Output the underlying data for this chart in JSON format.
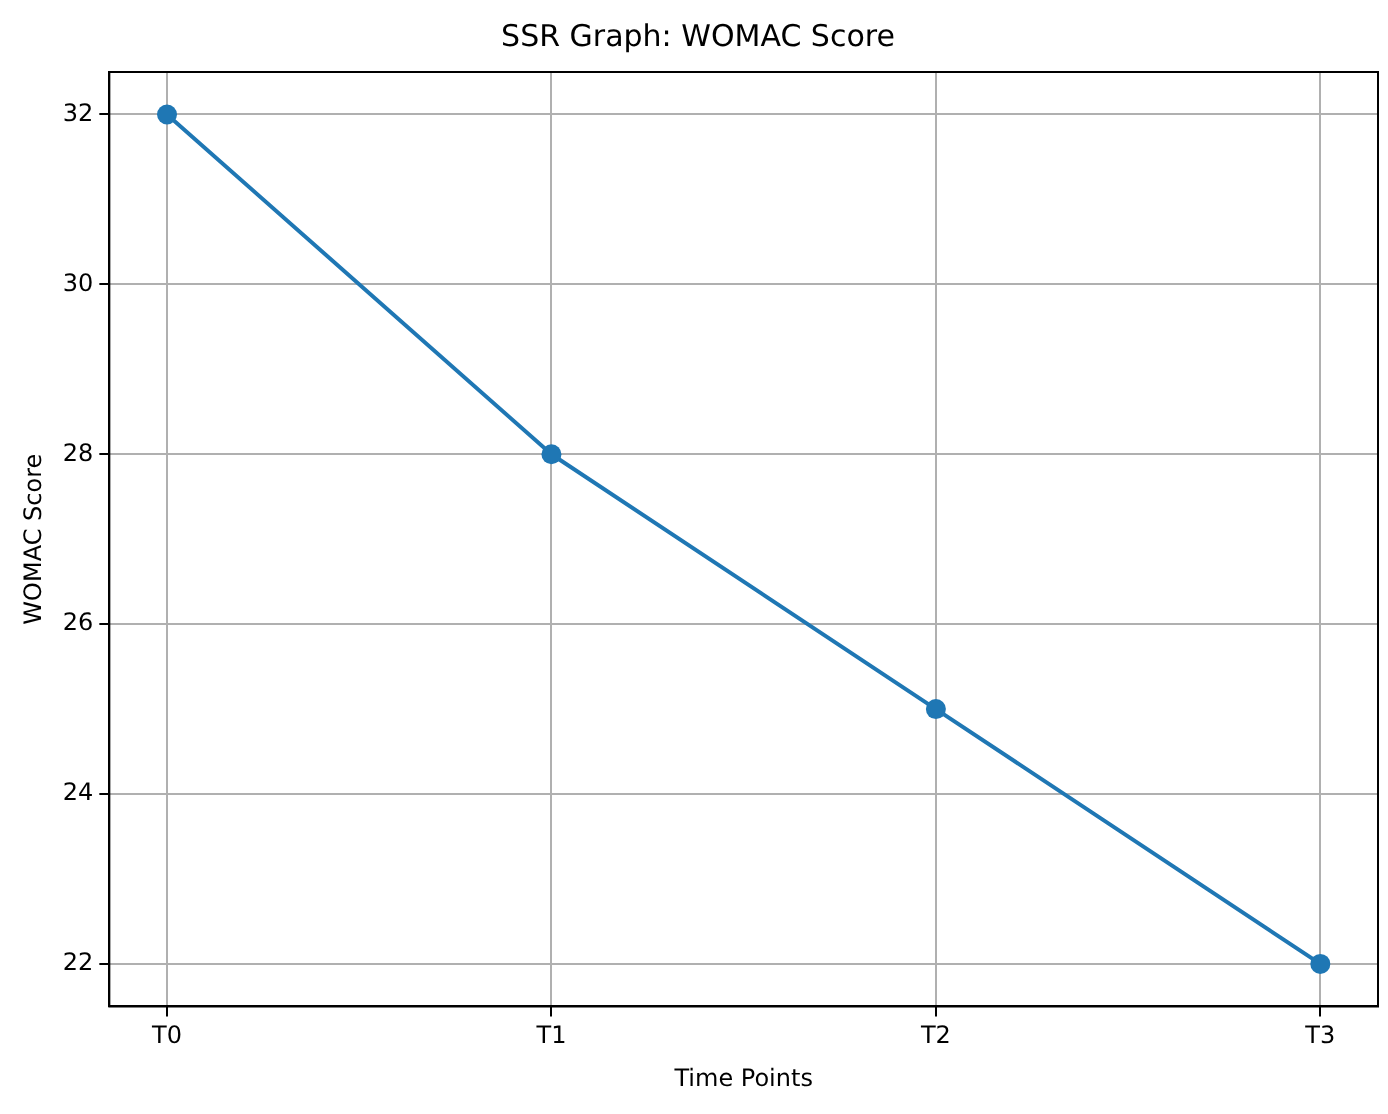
{
  "chart_data": {
    "type": "line",
    "title": "SSR Graph: WOMAC Score",
    "xlabel": "Time Points",
    "ylabel": "WOMAC Score",
    "categories": [
      "T0",
      "T1",
      "T2",
      "T3"
    ],
    "series": [
      {
        "color": "#1f77b4",
        "values": [
          32,
          28,
          25,
          22
        ]
      }
    ],
    "ylim": [
      21.5,
      32.5
    ],
    "yticks": [
      22,
      24,
      26,
      28,
      30,
      32
    ],
    "grid": true,
    "marker": "circle",
    "line_style": "solid"
  }
}
